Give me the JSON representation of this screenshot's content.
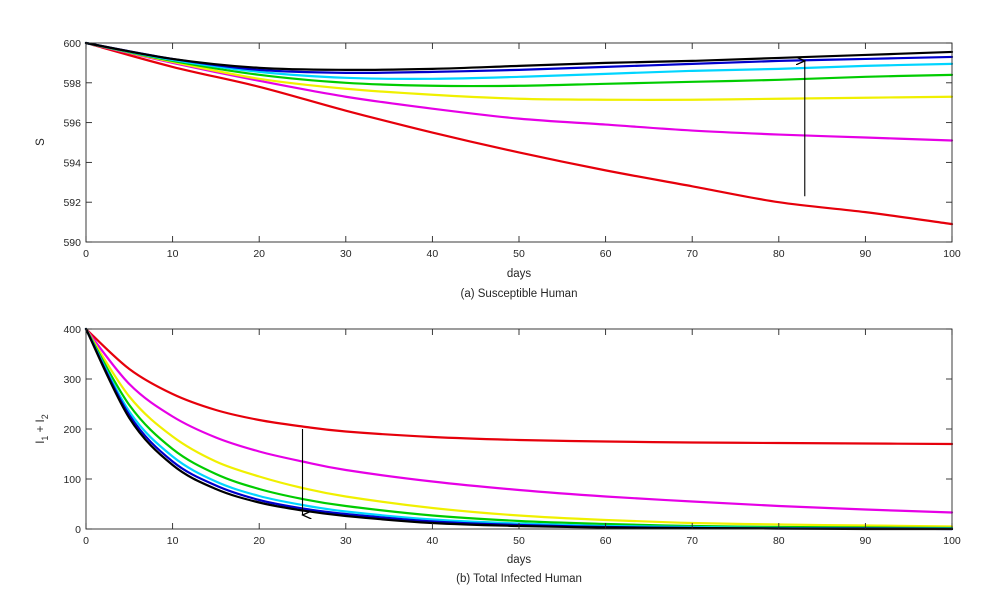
{
  "chart_data": [
    {
      "type": "line",
      "caption": "(a) Susceptible Human",
      "xlabel": "days",
      "ylabel": "S",
      "xlim": [
        0,
        100
      ],
      "ylim": [
        590,
        600
      ],
      "xticks": [
        0,
        10,
        20,
        30,
        40,
        50,
        60,
        70,
        80,
        90,
        100
      ],
      "yticks": [
        590,
        592,
        594,
        596,
        598,
        600
      ],
      "grid": false,
      "arrow": {
        "x": 83,
        "from": 592.3,
        "to": 599.1,
        "direction": "up"
      },
      "series": [
        {
          "color": "#e6000b",
          "x": [
            0,
            10,
            20,
            30,
            40,
            50,
            60,
            70,
            80,
            90,
            100
          ],
          "y": [
            600,
            598.8,
            597.8,
            596.6,
            595.5,
            594.5,
            593.6,
            592.8,
            592.0,
            591.5,
            590.9
          ]
        },
        {
          "color": "#e600e6",
          "x": [
            0,
            10,
            20,
            30,
            40,
            50,
            60,
            70,
            80,
            90,
            100
          ],
          "y": [
            600,
            599.0,
            598.1,
            597.3,
            596.7,
            596.2,
            595.9,
            595.6,
            595.4,
            595.25,
            595.1
          ]
        },
        {
          "color": "#f0f000",
          "x": [
            0,
            10,
            20,
            30,
            40,
            50,
            60,
            70,
            80,
            90,
            100
          ],
          "y": [
            600,
            599.05,
            598.2,
            597.7,
            597.4,
            597.2,
            597.15,
            597.15,
            597.2,
            597.25,
            597.3
          ]
        },
        {
          "color": "#00cc00",
          "x": [
            0,
            10,
            20,
            30,
            40,
            50,
            60,
            70,
            80,
            90,
            100
          ],
          "y": [
            600,
            599.1,
            598.4,
            598.0,
            597.85,
            597.85,
            597.95,
            598.05,
            598.15,
            598.3,
            598.4
          ]
        },
        {
          "color": "#00d5ff",
          "x": [
            0,
            10,
            20,
            30,
            40,
            50,
            60,
            70,
            80,
            90,
            100
          ],
          "y": [
            600,
            599.15,
            598.55,
            598.25,
            598.2,
            598.3,
            598.45,
            598.6,
            598.7,
            598.85,
            598.95
          ]
        },
        {
          "color": "#0000cc",
          "x": [
            0,
            10,
            20,
            30,
            40,
            50,
            60,
            70,
            80,
            90,
            100
          ],
          "y": [
            600,
            599.2,
            598.65,
            598.5,
            598.55,
            598.65,
            598.8,
            598.95,
            599.1,
            599.2,
            599.3
          ]
        },
        {
          "color": "#000000",
          "x": [
            0,
            10,
            20,
            30,
            40,
            50,
            60,
            70,
            80,
            90,
            100
          ],
          "y": [
            600,
            599.2,
            598.75,
            598.65,
            598.7,
            598.85,
            599.0,
            599.1,
            599.25,
            599.4,
            599.55
          ]
        }
      ]
    },
    {
      "type": "line",
      "caption": "(b) Total Infected Human",
      "xlabel": "days",
      "ylabel": "I1 + I2",
      "xlim": [
        0,
        100
      ],
      "ylim": [
        0,
        400
      ],
      "xticks": [
        0,
        10,
        20,
        30,
        40,
        50,
        60,
        70,
        80,
        90,
        100
      ],
      "yticks": [
        0,
        100,
        200,
        300,
        400
      ],
      "grid": false,
      "arrow": {
        "x": 25,
        "from": 200,
        "to": 28,
        "direction": "down"
      },
      "series": [
        {
          "color": "#e6000b",
          "x": [
            0,
            5,
            10,
            15,
            20,
            25,
            30,
            40,
            50,
            60,
            70,
            80,
            90,
            100
          ],
          "y": [
            400,
            320,
            270,
            238,
            218,
            205,
            195,
            184,
            178,
            175,
            173,
            172,
            171,
            170
          ]
        },
        {
          "color": "#e600e6",
          "x": [
            0,
            5,
            10,
            15,
            20,
            25,
            30,
            40,
            50,
            60,
            70,
            80,
            90,
            100
          ],
          "y": [
            400,
            290,
            225,
            183,
            155,
            135,
            118,
            95,
            78,
            65,
            55,
            46,
            39,
            33
          ]
        },
        {
          "color": "#f0f000",
          "x": [
            0,
            5,
            10,
            15,
            20,
            25,
            30,
            40,
            50,
            60,
            70,
            80,
            90,
            100
          ],
          "y": [
            400,
            265,
            185,
            135,
            105,
            82,
            65,
            42,
            27,
            18,
            12,
            9,
            7,
            5
          ]
        },
        {
          "color": "#00cc00",
          "x": [
            0,
            5,
            10,
            15,
            20,
            25,
            30,
            40,
            50,
            60,
            70,
            80,
            90,
            100
          ],
          "y": [
            400,
            248,
            160,
            110,
            80,
            60,
            46,
            27,
            16,
            10,
            6,
            4,
            3,
            2
          ]
        },
        {
          "color": "#00d5ff",
          "x": [
            0,
            5,
            10,
            15,
            20,
            25,
            30,
            40,
            50,
            60,
            70,
            80,
            90,
            100
          ],
          "y": [
            400,
            235,
            145,
            95,
            66,
            48,
            35,
            19,
            11,
            6,
            4,
            2,
            1,
            1
          ]
        },
        {
          "color": "#0000cc",
          "x": [
            0,
            5,
            10,
            15,
            20,
            25,
            30,
            40,
            50,
            60,
            70,
            80,
            90,
            100
          ],
          "y": [
            400,
            228,
            135,
            87,
            58,
            41,
            30,
            15,
            8,
            4,
            2,
            1,
            1,
            0
          ]
        },
        {
          "color": "#000000",
          "x": [
            0,
            5,
            10,
            15,
            20,
            25,
            30,
            40,
            50,
            60,
            70,
            80,
            90,
            100
          ],
          "y": [
            400,
            222,
            128,
            80,
            53,
            37,
            26,
            12,
            6,
            3,
            2,
            1,
            0,
            0
          ]
        }
      ]
    }
  ]
}
